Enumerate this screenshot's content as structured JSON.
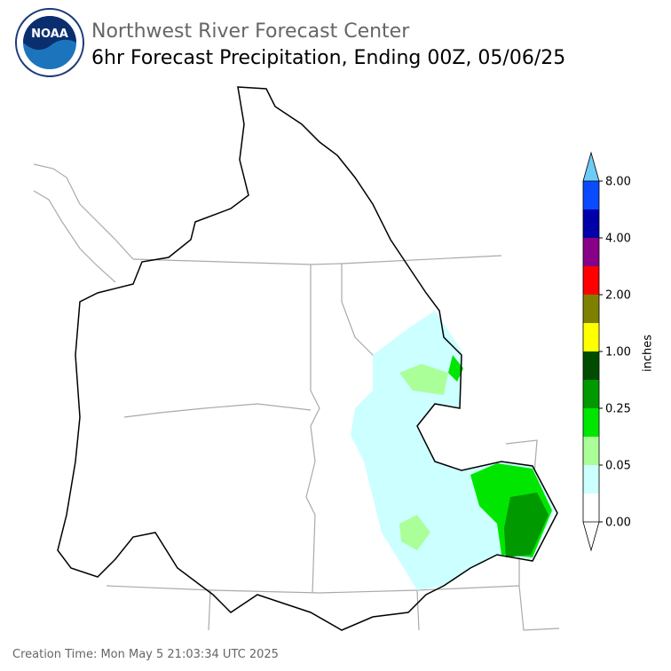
{
  "header": {
    "logo_text": "NOAA",
    "org": "Northwest River Forecast Center",
    "title": "6hr Forecast Precipitation, Ending 00Z, 05/06/25"
  },
  "colorbar": {
    "label": "inches",
    "ticks": [
      "0.00",
      "0.05",
      "0.25",
      "1.00",
      "2.00",
      "4.00",
      "8.00"
    ],
    "colors": [
      "#ffffff",
      "#ccffff",
      "#aaff99",
      "#00e600",
      "#009900",
      "#004d00",
      "#ffff00",
      "#808000",
      "#ff0000",
      "#880088",
      "#0000aa",
      "#0a4bff"
    ],
    "over_color": "#6ecbf5",
    "under_color": "#ffffff"
  },
  "footer": {
    "creation_time": "Creation Time: Mon May 5 21:03:34 UTC 2025"
  }
}
